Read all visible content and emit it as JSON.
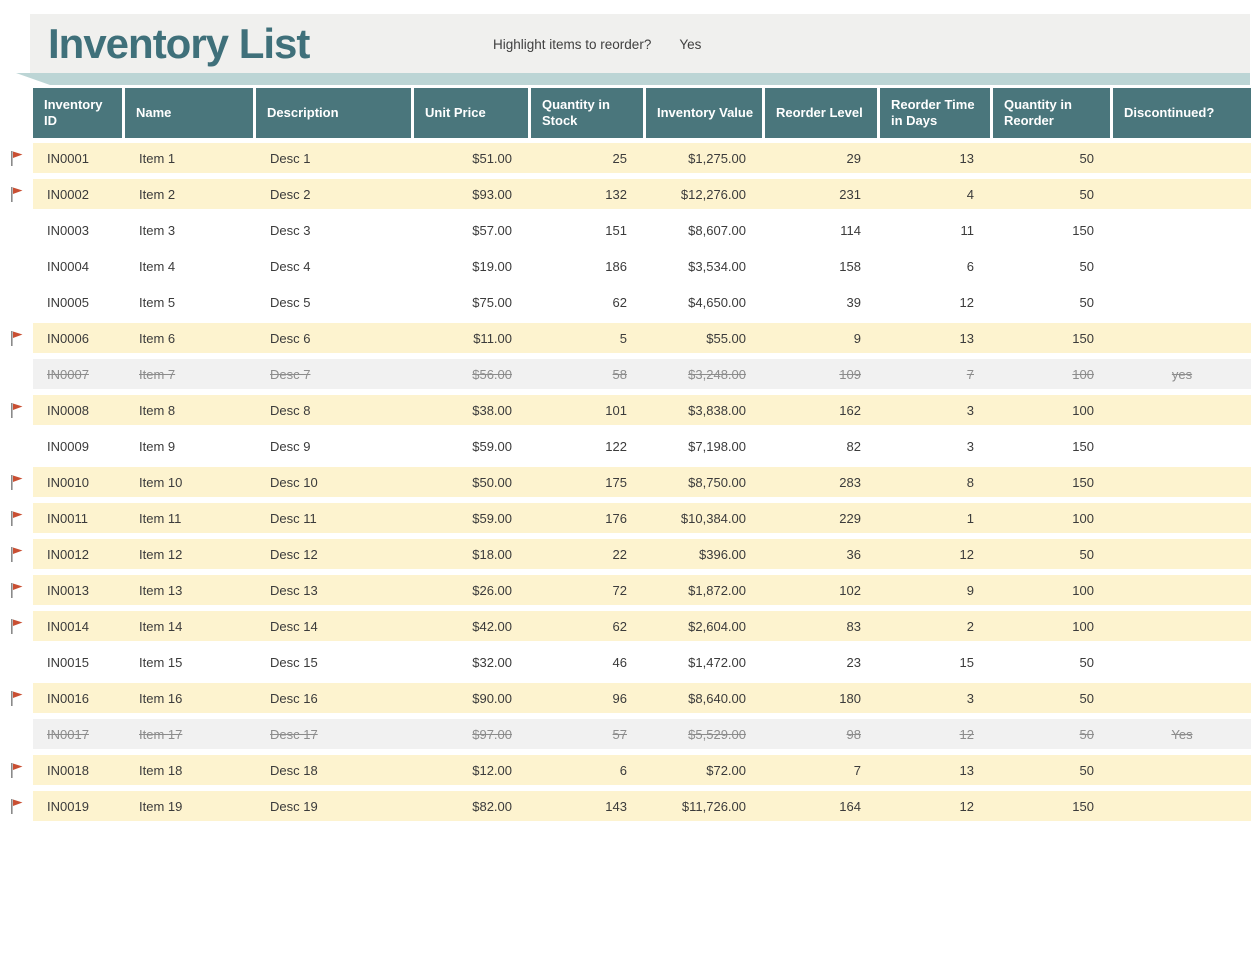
{
  "header": {
    "title": "Inventory List",
    "reorder_question": "Highlight items to reorder?",
    "reorder_answer": "Yes"
  },
  "colors": {
    "accent_teal": "#4a767c",
    "title_teal": "#3f707a",
    "ribbon_shadow": "#bcd5d5",
    "title_bar_bg": "#f0f0ee",
    "highlight_row": "#fdf3cf",
    "discontinued_row": "#f1f1f1",
    "discontinued_text": "#8c8c8c",
    "flag_red": "#c94f33",
    "flag_pole_gray": "#8a8a8a"
  },
  "icons": {
    "row_marker": "flag-icon"
  },
  "table": {
    "columns": [
      {
        "key": "inventory_id",
        "label": "Inventory ID",
        "align": "left"
      },
      {
        "key": "name",
        "label": "Name",
        "align": "left"
      },
      {
        "key": "description",
        "label": "Description",
        "align": "left"
      },
      {
        "key": "unit_price",
        "label": "Unit Price",
        "align": "right"
      },
      {
        "key": "qty_in_stock",
        "label": "Quantity in Stock",
        "align": "right"
      },
      {
        "key": "inventory_value",
        "label": "Inventory Value",
        "align": "right"
      },
      {
        "key": "reorder_level",
        "label": "Reorder Level",
        "align": "right"
      },
      {
        "key": "reorder_time_days",
        "label": "Reorder Time in Days",
        "align": "right"
      },
      {
        "key": "qty_in_reorder",
        "label": "Quantity in Reorder",
        "align": "right"
      },
      {
        "key": "discontinued",
        "label": "Discontinued?",
        "align": "center"
      }
    ],
    "rows": [
      {
        "inventory_id": "IN0001",
        "name": "Item 1",
        "description": "Desc 1",
        "unit_price": "$51.00",
        "qty_in_stock": "25",
        "inventory_value": "$1,275.00",
        "reorder_level": "29",
        "reorder_time_days": "13",
        "qty_in_reorder": "50",
        "discontinued": "",
        "status": "highlight",
        "flagged": true
      },
      {
        "inventory_id": "IN0002",
        "name": "Item 2",
        "description": "Desc 2",
        "unit_price": "$93.00",
        "qty_in_stock": "132",
        "inventory_value": "$12,276.00",
        "reorder_level": "231",
        "reorder_time_days": "4",
        "qty_in_reorder": "50",
        "discontinued": "",
        "status": "highlight",
        "flagged": true
      },
      {
        "inventory_id": "IN0003",
        "name": "Item 3",
        "description": "Desc 3",
        "unit_price": "$57.00",
        "qty_in_stock": "151",
        "inventory_value": "$8,607.00",
        "reorder_level": "114",
        "reorder_time_days": "11",
        "qty_in_reorder": "150",
        "discontinued": "",
        "status": "normal",
        "flagged": false
      },
      {
        "inventory_id": "IN0004",
        "name": "Item 4",
        "description": "Desc 4",
        "unit_price": "$19.00",
        "qty_in_stock": "186",
        "inventory_value": "$3,534.00",
        "reorder_level": "158",
        "reorder_time_days": "6",
        "qty_in_reorder": "50",
        "discontinued": "",
        "status": "normal",
        "flagged": false
      },
      {
        "inventory_id": "IN0005",
        "name": "Item 5",
        "description": "Desc 5",
        "unit_price": "$75.00",
        "qty_in_stock": "62",
        "inventory_value": "$4,650.00",
        "reorder_level": "39",
        "reorder_time_days": "12",
        "qty_in_reorder": "50",
        "discontinued": "",
        "status": "normal",
        "flagged": false
      },
      {
        "inventory_id": "IN0006",
        "name": "Item 6",
        "description": "Desc 6",
        "unit_price": "$11.00",
        "qty_in_stock": "5",
        "inventory_value": "$55.00",
        "reorder_level": "9",
        "reorder_time_days": "13",
        "qty_in_reorder": "150",
        "discontinued": "",
        "status": "highlight",
        "flagged": true
      },
      {
        "inventory_id": "IN0007",
        "name": "Item 7",
        "description": "Desc 7",
        "unit_price": "$56.00",
        "qty_in_stock": "58",
        "inventory_value": "$3,248.00",
        "reorder_level": "109",
        "reorder_time_days": "7",
        "qty_in_reorder": "100",
        "discontinued": "yes",
        "status": "discontinued",
        "flagged": false
      },
      {
        "inventory_id": "IN0008",
        "name": "Item 8",
        "description": "Desc 8",
        "unit_price": "$38.00",
        "qty_in_stock": "101",
        "inventory_value": "$3,838.00",
        "reorder_level": "162",
        "reorder_time_days": "3",
        "qty_in_reorder": "100",
        "discontinued": "",
        "status": "highlight",
        "flagged": true
      },
      {
        "inventory_id": "IN0009",
        "name": "Item 9",
        "description": "Desc 9",
        "unit_price": "$59.00",
        "qty_in_stock": "122",
        "inventory_value": "$7,198.00",
        "reorder_level": "82",
        "reorder_time_days": "3",
        "qty_in_reorder": "150",
        "discontinued": "",
        "status": "normal",
        "flagged": false
      },
      {
        "inventory_id": "IN0010",
        "name": "Item 10",
        "description": "Desc 10",
        "unit_price": "$50.00",
        "qty_in_stock": "175",
        "inventory_value": "$8,750.00",
        "reorder_level": "283",
        "reorder_time_days": "8",
        "qty_in_reorder": "150",
        "discontinued": "",
        "status": "highlight",
        "flagged": true
      },
      {
        "inventory_id": "IN0011",
        "name": "Item 11",
        "description": "Desc 11",
        "unit_price": "$59.00",
        "qty_in_stock": "176",
        "inventory_value": "$10,384.00",
        "reorder_level": "229",
        "reorder_time_days": "1",
        "qty_in_reorder": "100",
        "discontinued": "",
        "status": "highlight",
        "flagged": true
      },
      {
        "inventory_id": "IN0012",
        "name": "Item 12",
        "description": "Desc 12",
        "unit_price": "$18.00",
        "qty_in_stock": "22",
        "inventory_value": "$396.00",
        "reorder_level": "36",
        "reorder_time_days": "12",
        "qty_in_reorder": "50",
        "discontinued": "",
        "status": "highlight",
        "flagged": true
      },
      {
        "inventory_id": "IN0013",
        "name": "Item 13",
        "description": "Desc 13",
        "unit_price": "$26.00",
        "qty_in_stock": "72",
        "inventory_value": "$1,872.00",
        "reorder_level": "102",
        "reorder_time_days": "9",
        "qty_in_reorder": "100",
        "discontinued": "",
        "status": "highlight",
        "flagged": true
      },
      {
        "inventory_id": "IN0014",
        "name": "Item 14",
        "description": "Desc 14",
        "unit_price": "$42.00",
        "qty_in_stock": "62",
        "inventory_value": "$2,604.00",
        "reorder_level": "83",
        "reorder_time_days": "2",
        "qty_in_reorder": "100",
        "discontinued": "",
        "status": "highlight",
        "flagged": true
      },
      {
        "inventory_id": "IN0015",
        "name": "Item 15",
        "description": "Desc 15",
        "unit_price": "$32.00",
        "qty_in_stock": "46",
        "inventory_value": "$1,472.00",
        "reorder_level": "23",
        "reorder_time_days": "15",
        "qty_in_reorder": "50",
        "discontinued": "",
        "status": "normal",
        "flagged": false
      },
      {
        "inventory_id": "IN0016",
        "name": "Item 16",
        "description": "Desc 16",
        "unit_price": "$90.00",
        "qty_in_stock": "96",
        "inventory_value": "$8,640.00",
        "reorder_level": "180",
        "reorder_time_days": "3",
        "qty_in_reorder": "50",
        "discontinued": "",
        "status": "highlight",
        "flagged": true
      },
      {
        "inventory_id": "IN0017",
        "name": "Item 17",
        "description": "Desc 17",
        "unit_price": "$97.00",
        "qty_in_stock": "57",
        "inventory_value": "$5,529.00",
        "reorder_level": "98",
        "reorder_time_days": "12",
        "qty_in_reorder": "50",
        "discontinued": "Yes",
        "status": "discontinued",
        "flagged": false
      },
      {
        "inventory_id": "IN0018",
        "name": "Item 18",
        "description": "Desc 18",
        "unit_price": "$12.00",
        "qty_in_stock": "6",
        "inventory_value": "$72.00",
        "reorder_level": "7",
        "reorder_time_days": "13",
        "qty_in_reorder": "50",
        "discontinued": "",
        "status": "highlight",
        "flagged": true
      },
      {
        "inventory_id": "IN0019",
        "name": "Item 19",
        "description": "Desc 19",
        "unit_price": "$82.00",
        "qty_in_stock": "143",
        "inventory_value": "$11,726.00",
        "reorder_level": "164",
        "reorder_time_days": "12",
        "qty_in_reorder": "150",
        "discontinued": "",
        "status": "highlight",
        "flagged": true
      }
    ]
  }
}
